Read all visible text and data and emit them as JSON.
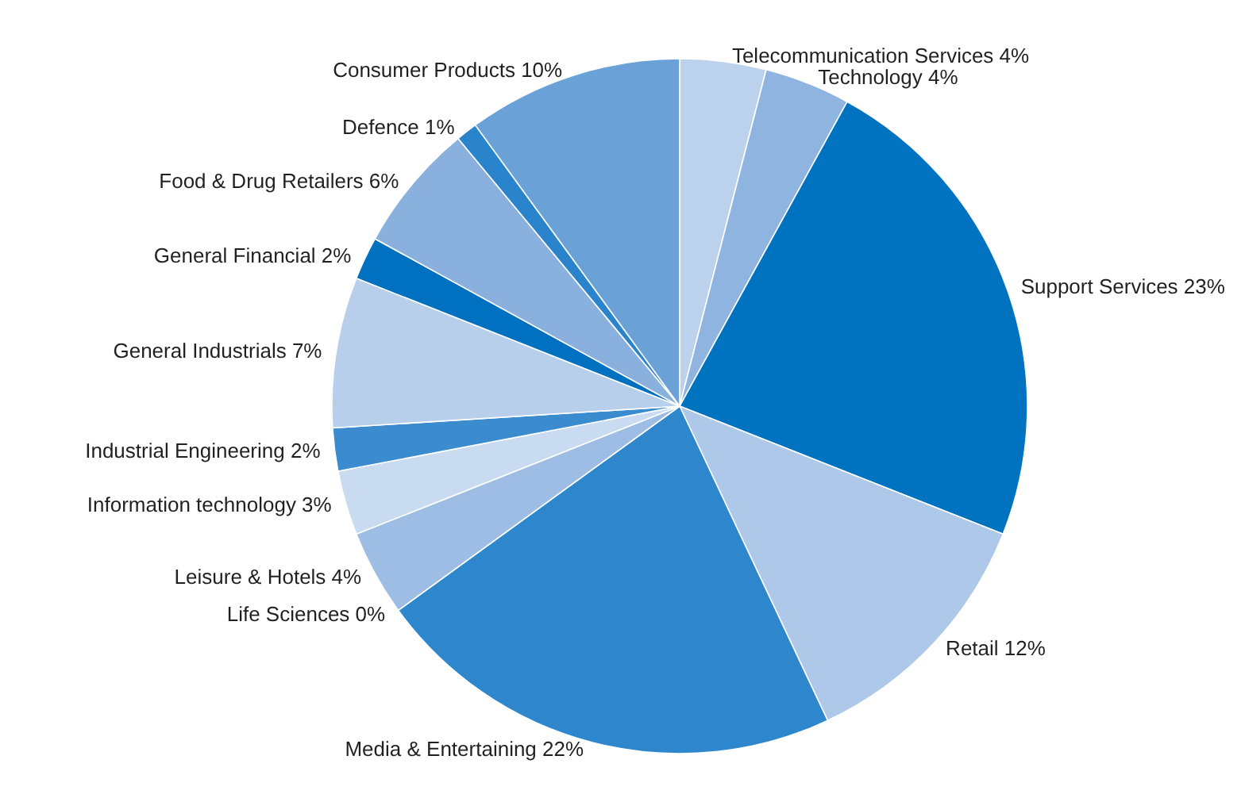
{
  "chart_data": {
    "type": "pie",
    "categories": [
      "Telecommunication Services",
      "Technology",
      "Support Services",
      "Retail",
      "Media & Entertaining",
      "Life Sciences",
      "Leisure & Hotels",
      "Information technology",
      "Industrial Engineering",
      "General Industrials",
      "General Financial",
      "Food & Drug Retailers",
      "Defence",
      "Consumer Products"
    ],
    "values": [
      4,
      4,
      23,
      12,
      22,
      0,
      4,
      3,
      2,
      7,
      2,
      6,
      1,
      10
    ],
    "value_labels": [
      "4%",
      "4%",
      "23%",
      "12%",
      "22%",
      "0%",
      "4%",
      "3%",
      "2%",
      "7%",
      "2%",
      "6%",
      "1%",
      "10%"
    ],
    "colors": [
      "#bcd2ec",
      "#8fb4e0",
      "#0073c0",
      "#adc8e8",
      "#2e87cc",
      "#4a95d2",
      "#9dbde4",
      "#c8dbf0",
      "#3a8cce",
      "#b8cfec",
      "#0070c0",
      "#8ab1de",
      "#2a84cc",
      "#6aa2d8"
    ],
    "legend": false
  }
}
